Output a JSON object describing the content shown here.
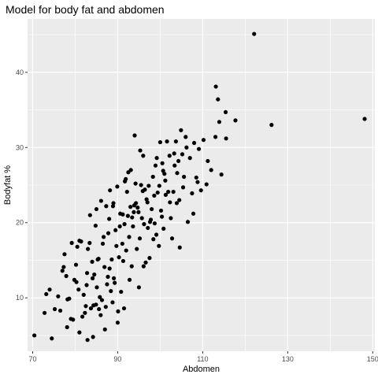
{
  "chart_data": {
    "type": "scatter",
    "title": "Model for body fat and abdomen",
    "xlabel": "Abdomen",
    "ylabel": "Bodyfat %",
    "xlim": [
      68.8,
      150.5
    ],
    "ylim": [
      2.9,
      47.1
    ],
    "x_ticks": [
      70,
      90,
      110,
      130,
      150
    ],
    "y_ticks": [
      10,
      20,
      30,
      40
    ],
    "grid": true,
    "legend": "none",
    "panel_color": "#ebebeb",
    "grid_color": "#ffffff",
    "point_color": "#000000",
    "points": [
      [
        70.4,
        5.0
      ],
      [
        74.5,
        4.6
      ],
      [
        73.2,
        10.5
      ],
      [
        74.0,
        11.1
      ],
      [
        75.2,
        8.5
      ],
      [
        76.5,
        8.3
      ],
      [
        77.0,
        13.6
      ],
      [
        77.3,
        14.1
      ],
      [
        77.5,
        15.8
      ],
      [
        77.9,
        12.9
      ],
      [
        78.2,
        9.8
      ],
      [
        78.6,
        9.9
      ],
      [
        79.0,
        7.2
      ],
      [
        78.1,
        6.1
      ],
      [
        79.5,
        7.1
      ],
      [
        79.2,
        17.3
      ],
      [
        80.3,
        12.1
      ],
      [
        80.5,
        16.8
      ],
      [
        81.0,
        17.6
      ],
      [
        81.4,
        17.5
      ],
      [
        80.2,
        14.4
      ],
      [
        81.7,
        7.5
      ],
      [
        81.0,
        5.4
      ],
      [
        82.3,
        8.0
      ],
      [
        82.7,
        11.7
      ],
      [
        82.8,
        13.3
      ],
      [
        82.9,
        4.4
      ],
      [
        83.0,
        16.5
      ],
      [
        83.4,
        17.3
      ],
      [
        83.7,
        8.6
      ],
      [
        84.2,
        4.8
      ],
      [
        84.5,
        13.1
      ],
      [
        84.1,
        12.6
      ],
      [
        84.3,
        9.0
      ],
      [
        84.9,
        9.1
      ],
      [
        85.1,
        11.4
      ],
      [
        85.5,
        15.2
      ],
      [
        85.3,
        15.1
      ],
      [
        85.8,
        10.1
      ],
      [
        86.0,
        7.7
      ],
      [
        86.3,
        9.7
      ],
      [
        86.7,
        18.1
      ],
      [
        86.9,
        14.1
      ],
      [
        87.2,
        8.8
      ],
      [
        87.0,
        5.8
      ],
      [
        87.5,
        11.8
      ],
      [
        87.8,
        18.6
      ],
      [
        88.0,
        20.5
      ],
      [
        88.1,
        13.9
      ],
      [
        88.4,
        10.9
      ],
      [
        88.6,
        15.1
      ],
      [
        88.9,
        22.2
      ],
      [
        89.1,
        12.6
      ],
      [
        89.3,
        12.0
      ],
      [
        89.5,
        19.0
      ],
      [
        89.7,
        16.9
      ],
      [
        90.0,
        6.7
      ],
      [
        90.1,
        8.2
      ],
      [
        90.3,
        15.4
      ],
      [
        90.6,
        21.2
      ],
      [
        90.8,
        10.8
      ],
      [
        91.1,
        17.2
      ],
      [
        91.3,
        14.9
      ],
      [
        91.5,
        8.6
      ],
      [
        91.6,
        19.8
      ],
      [
        91.9,
        25.8
      ],
      [
        92.2,
        24.1
      ],
      [
        92.0,
        16.3
      ],
      [
        92.4,
        20.9
      ],
      [
        92.7,
        18.1
      ],
      [
        93.0,
        22.1
      ],
      [
        93.1,
        27.0
      ],
      [
        93.3,
        14.2
      ],
      [
        93.6,
        19.5
      ],
      [
        93.8,
        21.4
      ],
      [
        94.0,
        31.6
      ],
      [
        94.2,
        25.2
      ],
      [
        94.5,
        16.5
      ],
      [
        94.7,
        22.0
      ],
      [
        94.9,
        21.4
      ],
      [
        95.0,
        11.4
      ],
      [
        95.2,
        17.9
      ],
      [
        95.5,
        25.0
      ],
      [
        95.7,
        20.6
      ],
      [
        96.0,
        28.9
      ],
      [
        96.2,
        19.8
      ],
      [
        96.6,
        14.7
      ],
      [
        96.8,
        23.1
      ],
      [
        97.1,
        19.3
      ],
      [
        97.3,
        24.9
      ],
      [
        97.5,
        15.3
      ],
      [
        97.8,
        20.4
      ],
      [
        98.0,
        21.8
      ],
      [
        98.3,
        26.1
      ],
      [
        98.6,
        23.6
      ],
      [
        98.9,
        27.6
      ],
      [
        99.1,
        18.4
      ],
      [
        99.4,
        24.0
      ],
      [
        99.7,
        16.9
      ],
      [
        100.0,
        30.7
      ],
      [
        100.2,
        21.6
      ],
      [
        100.5,
        27.9
      ],
      [
        100.8,
        19.2
      ],
      [
        101.0,
        26.5
      ],
      [
        101.3,
        23.7
      ],
      [
        101.6,
        30.8
      ],
      [
        101.9,
        24.1
      ],
      [
        102.2,
        28.9
      ],
      [
        102.5,
        20.6
      ],
      [
        102.8,
        17.9
      ],
      [
        103.1,
        24.1
      ],
      [
        103.4,
        27.6
      ],
      [
        103.7,
        30.8
      ],
      [
        104.0,
        26.6
      ],
      [
        104.3,
        28.2
      ],
      [
        104.6,
        16.7
      ],
      [
        104.9,
        32.3
      ],
      [
        105.2,
        29.1
      ],
      [
        105.6,
        26.1
      ],
      [
        106.0,
        31.4
      ],
      [
        106.5,
        20.1
      ],
      [
        107.0,
        28.6
      ],
      [
        107.5,
        23.9
      ],
      [
        108.0,
        30.6
      ],
      [
        108.5,
        26.0
      ],
      [
        109.1,
        29.8
      ],
      [
        109.6,
        24.3
      ],
      [
        110.2,
        31.0
      ],
      [
        110.9,
        25.1
      ],
      [
        112.0,
        27.0
      ],
      [
        113.0,
        31.4
      ],
      [
        113.1,
        38.1
      ],
      [
        113.6,
        36.4
      ],
      [
        113.9,
        33.4
      ],
      [
        114.4,
        26.4
      ],
      [
        115.4,
        34.7
      ],
      [
        115.5,
        31.2
      ],
      [
        117.7,
        33.6
      ],
      [
        122.1,
        45.1
      ],
      [
        126.2,
        33.0
      ],
      [
        148.1,
        33.8
      ],
      [
        72.8,
        8.0
      ],
      [
        76.0,
        10.2
      ],
      [
        79.8,
        12.4
      ],
      [
        82.0,
        10.4
      ],
      [
        84.0,
        14.8
      ],
      [
        85.0,
        21.8
      ],
      [
        86.5,
        17.2
      ],
      [
        87.3,
        22.2
      ],
      [
        88.2,
        24.3
      ],
      [
        89.0,
        22.6
      ],
      [
        90.5,
        19.5
      ],
      [
        91.2,
        21.1
      ],
      [
        92.5,
        26.7
      ],
      [
        93.4,
        20.7
      ],
      [
        94.3,
        22.6
      ],
      [
        95.3,
        29.6
      ],
      [
        96.4,
        24.4
      ],
      [
        97.6,
        20.1
      ],
      [
        98.4,
        17.8
      ],
      [
        99.2,
        28.6
      ],
      [
        100.4,
        20.8
      ],
      [
        101.2,
        25.6
      ],
      [
        102.3,
        22.7
      ],
      [
        103.3,
        29.2
      ],
      [
        104.5,
        23.0
      ],
      [
        105.4,
        24.7
      ],
      [
        106.2,
        30.0
      ],
      [
        108.8,
        25.4
      ],
      [
        111.2,
        28.2
      ],
      [
        83.5,
        21.0
      ],
      [
        84.8,
        19.6
      ],
      [
        86.1,
        22.9
      ],
      [
        87.7,
        12.8
      ],
      [
        89.9,
        24.8
      ],
      [
        91.7,
        25.5
      ],
      [
        93.9,
        22.3
      ],
      [
        95.9,
        24.2
      ],
      [
        97.0,
        22.7
      ],
      [
        99.8,
        24.9
      ],
      [
        80.8,
        11.1
      ],
      [
        82.5,
        8.9
      ],
      [
        85.6,
        8.5
      ],
      [
        88.8,
        9.4
      ],
      [
        92.8,
        12.4
      ],
      [
        96.1,
        14.2
      ],
      [
        98.7,
        19.9
      ],
      [
        100.7,
        26.9
      ],
      [
        103.9,
        22.6
      ],
      [
        107.8,
        21.2
      ]
    ]
  }
}
